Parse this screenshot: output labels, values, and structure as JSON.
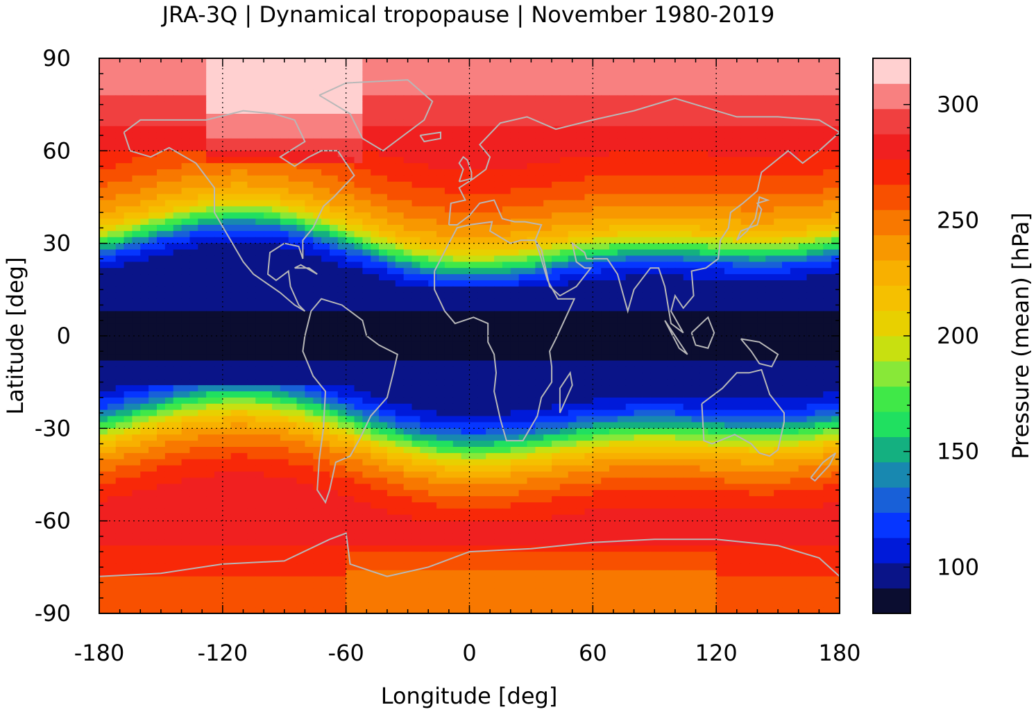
{
  "title": "JRA-3Q | Dynamical tropopause | November 1980-2019",
  "x_axis": {
    "label": "Longitude [deg]",
    "ticks": [
      "-180",
      "-120",
      "-60",
      "0",
      "60",
      "120",
      "180"
    ],
    "range": [
      -180,
      180
    ]
  },
  "y_axis": {
    "label": "Latitude [deg]",
    "ticks": [
      "90",
      "60",
      "30",
      "0",
      "-30",
      "-60",
      "-90"
    ],
    "range": [
      -90,
      90
    ]
  },
  "colorbar": {
    "label": "Pressure (mean) [hPa]",
    "ticks": [
      "300",
      "250",
      "200",
      "150",
      "100"
    ],
    "range": [
      80,
      320
    ]
  },
  "colors": {
    "coastline": "#b8b8b8",
    "bands": [
      "#0b0d30",
      "#0a1488",
      "#001ad9",
      "#0636ff",
      "#1860d8",
      "#1888b0",
      "#14b080",
      "#20e060",
      "#40e848",
      "#88e838",
      "#c8e010",
      "#e8d000",
      "#f5c000",
      "#f8b000",
      "#f89800",
      "#f87800",
      "#f85000",
      "#f82808",
      "#f02020",
      "#f04040",
      "#f88080",
      "#ffd0d0"
    ]
  },
  "chart_data": {
    "type": "heatmap",
    "title": "JRA-3Q | Dynamical tropopause | November 1980-2019",
    "xlabel": "Longitude [deg]",
    "ylabel": "Latitude [deg]",
    "colorbar_label": "Pressure (mean) [hPa]",
    "xlim": [
      -180,
      180
    ],
    "ylim": [
      -90,
      90
    ],
    "clim": [
      80,
      320
    ],
    "grid": true,
    "zonal_mean_profile": {
      "lat": [
        90,
        80,
        70,
        60,
        50,
        40,
        35,
        30,
        25,
        20,
        15,
        10,
        5,
        0,
        -5,
        -10,
        -15,
        -20,
        -25,
        -30,
        -35,
        -40,
        -50,
        -60,
        -70,
        -80,
        -90
      ],
      "pressure_hPa": [
        300,
        300,
        290,
        275,
        260,
        235,
        215,
        170,
        120,
        100,
        95,
        92,
        90,
        90,
        90,
        92,
        95,
        105,
        130,
        175,
        215,
        240,
        270,
        285,
        275,
        262,
        260
      ]
    }
  }
}
